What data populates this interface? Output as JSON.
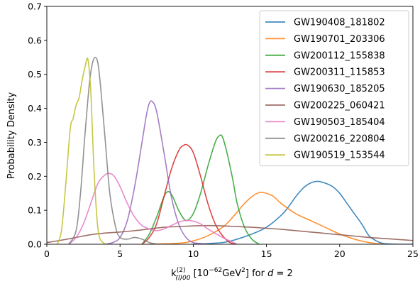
{
  "chart_data": {
    "type": "line",
    "xlabel_main": "k",
    "xlabel_sup": "(2)",
    "xlabel_sub": "(l)00",
    "xlabel_units_pre": " [10",
    "xlabel_units_exp": "−62",
    "xlabel_units_mid": "GeV",
    "xlabel_units_exp2": "2",
    "xlabel_units_post": "] for ",
    "xlabel_var": "d",
    "xlabel_eq": " = 2",
    "ylabel": "Probability Density",
    "xlim": [
      0,
      25
    ],
    "ylim": [
      0,
      0.7
    ],
    "xticks": [
      0,
      5,
      10,
      15,
      20,
      25
    ],
    "yticks": [
      0.0,
      0.1,
      0.2,
      0.3,
      0.4,
      0.5,
      0.6,
      0.7
    ],
    "legend_position": "top-right",
    "series": [
      {
        "name": "GW190408_181802",
        "color": "#1f77b4",
        "x": [
          10,
          12,
          13,
          14,
          15,
          16,
          16.5,
          17,
          17.5,
          18,
          18.5,
          19,
          19.5,
          20,
          20.5,
          21,
          21.5,
          22,
          22.5,
          23,
          24,
          25
        ],
        "y": [
          0.0,
          0.005,
          0.015,
          0.03,
          0.05,
          0.085,
          0.11,
          0.14,
          0.165,
          0.18,
          0.185,
          0.18,
          0.17,
          0.15,
          0.12,
          0.09,
          0.06,
          0.025,
          0.01,
          0.002,
          0.0,
          0.0
        ]
      },
      {
        "name": "GW190701_203306",
        "color": "#ff7f0e",
        "x": [
          7,
          9,
          10,
          11,
          12,
          12.5,
          13,
          13.5,
          14,
          14.5,
          15,
          15.5,
          16,
          17,
          18,
          19,
          20,
          21,
          22,
          23
        ],
        "y": [
          0.0,
          0.003,
          0.01,
          0.025,
          0.05,
          0.07,
          0.095,
          0.12,
          0.14,
          0.152,
          0.15,
          0.14,
          0.12,
          0.09,
          0.07,
          0.05,
          0.03,
          0.015,
          0.005,
          0.0
        ]
      },
      {
        "name": "GW200112_155838",
        "color": "#2ca02c",
        "x": [
          6.5,
          7,
          7.5,
          8,
          8.3,
          8.6,
          9,
          9.5,
          10,
          10.5,
          11,
          11.5,
          11.8,
          12,
          12.3,
          12.7,
          13,
          13.5,
          14,
          14.5
        ],
        "y": [
          0.0,
          0.03,
          0.08,
          0.14,
          0.155,
          0.14,
          0.1,
          0.07,
          0.09,
          0.15,
          0.23,
          0.3,
          0.32,
          0.315,
          0.27,
          0.19,
          0.12,
          0.05,
          0.015,
          0.0
        ]
      },
      {
        "name": "GW200311_115853",
        "color": "#d62728",
        "x": [
          6.5,
          7,
          7.5,
          8,
          8.5,
          9,
          9.3,
          9.6,
          10,
          10.5,
          11,
          11.5,
          12,
          12.5,
          13
        ],
        "y": [
          0.0,
          0.02,
          0.06,
          0.14,
          0.22,
          0.275,
          0.29,
          0.292,
          0.27,
          0.2,
          0.12,
          0.06,
          0.025,
          0.005,
          0.0
        ]
      },
      {
        "name": "GW190630_185205",
        "color": "#9467bd",
        "x": [
          4,
          4.5,
          5,
          5.5,
          6,
          6.5,
          6.8,
          7,
          7.2,
          7.5,
          8,
          8.5,
          9,
          9.5,
          10,
          10.5,
          11
        ],
        "y": [
          0.0,
          0.005,
          0.02,
          0.07,
          0.17,
          0.3,
          0.38,
          0.415,
          0.42,
          0.39,
          0.27,
          0.14,
          0.06,
          0.02,
          0.005,
          0.002,
          0.0
        ]
      },
      {
        "name": "GW200225_060421",
        "color": "#8c564b",
        "x": [
          0,
          1,
          2,
          3,
          4,
          5,
          6,
          7,
          8,
          9,
          10,
          11,
          12,
          13,
          14,
          15,
          16,
          17,
          18,
          19,
          20,
          21,
          22,
          23,
          24,
          25
        ],
        "y": [
          0.005,
          0.012,
          0.02,
          0.028,
          0.033,
          0.036,
          0.04,
          0.045,
          0.05,
          0.052,
          0.054,
          0.055,
          0.054,
          0.052,
          0.05,
          0.047,
          0.044,
          0.04,
          0.036,
          0.032,
          0.028,
          0.024,
          0.02,
          0.017,
          0.014,
          0.011
        ]
      },
      {
        "name": "GW190503_185404",
        "color": "#e377c2",
        "x": [
          1.5,
          2,
          2.5,
          3,
          3.5,
          4,
          4.3,
          4.6,
          5,
          5.5,
          6,
          6.5,
          7,
          7.5,
          8,
          8.5,
          9,
          9.5,
          10,
          10.5,
          11,
          12,
          13
        ],
        "y": [
          0.0,
          0.02,
          0.06,
          0.12,
          0.18,
          0.205,
          0.208,
          0.2,
          0.17,
          0.12,
          0.08,
          0.055,
          0.045,
          0.04,
          0.045,
          0.055,
          0.065,
          0.07,
          0.068,
          0.06,
          0.045,
          0.02,
          0.0
        ]
      },
      {
        "name": "GW200216_220804",
        "color": "#7f7f7f",
        "x": [
          1.5,
          2,
          2.3,
          2.6,
          2.9,
          3.1,
          3.3,
          3.5,
          3.7,
          4,
          4.3,
          4.7,
          5,
          5.5,
          6,
          6.5,
          7,
          7.5
        ],
        "y": [
          0.0,
          0.04,
          0.15,
          0.32,
          0.47,
          0.53,
          0.55,
          0.53,
          0.45,
          0.3,
          0.15,
          0.05,
          0.02,
          0.015,
          0.02,
          0.015,
          0.005,
          0.0
        ]
      },
      {
        "name": "GW190519_153544",
        "color": "#bcbd22",
        "x": [
          0.7,
          1,
          1.3,
          1.6,
          1.8,
          2.0,
          2.2,
          2.4,
          2.6,
          2.8,
          3.0,
          3.2,
          3.4,
          3.6,
          4
        ],
        "y": [
          0.0,
          0.04,
          0.18,
          0.34,
          0.37,
          0.41,
          0.43,
          0.48,
          0.52,
          0.545,
          0.45,
          0.24,
          0.09,
          0.02,
          0.0
        ]
      }
    ]
  }
}
